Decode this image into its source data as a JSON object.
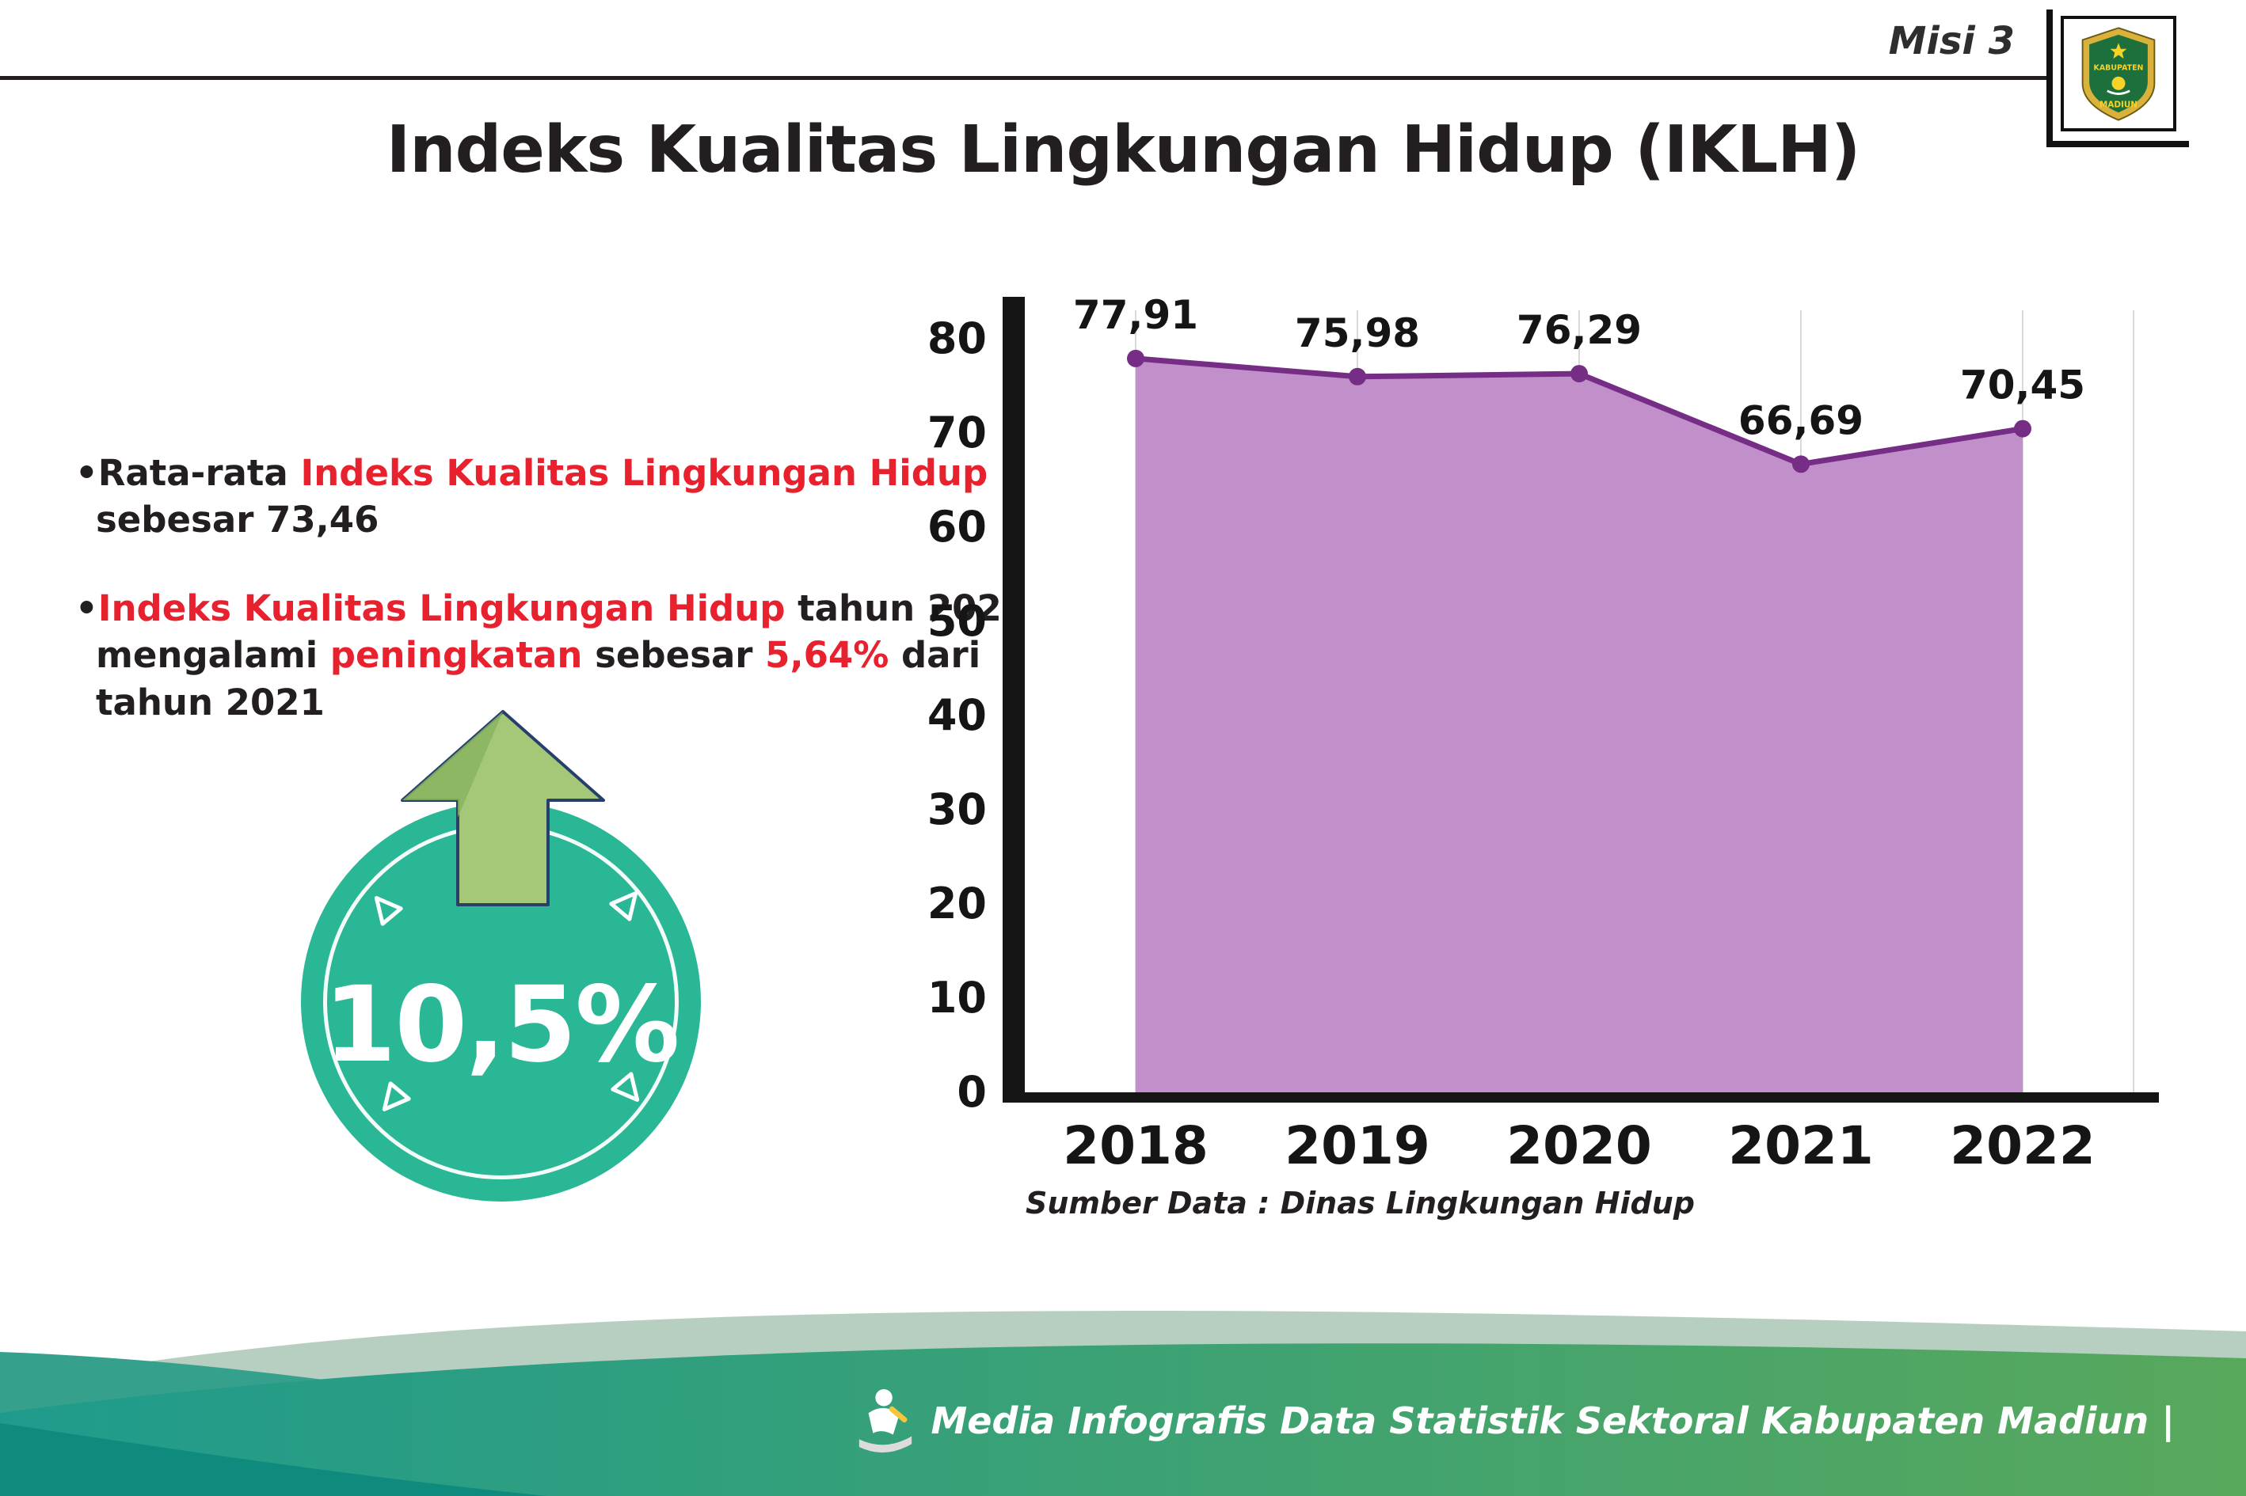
{
  "header": {
    "misi_label": "Misi 3",
    "title": "Indeks Kualitas Lingkungan Hidup (IKLH)",
    "logo": {
      "top_text": "KABUPATEN",
      "bottom_text": "MADIUN"
    }
  },
  "bullets": {
    "marker": "•",
    "b1": [
      [
        {
          "t": "Rata-rata ",
          "c": "k"
        },
        {
          "t": "Indeks Kualitas Lingkungan Hidup",
          "c": "r"
        }
      ],
      [
        {
          "t": "sebesar 73,46",
          "c": "k"
        }
      ]
    ],
    "b2": [
      [
        {
          "t": "Indeks Kualitas Lingkungan Hidup",
          "c": "r"
        },
        {
          "t": " tahun 2022",
          "c": "k"
        }
      ],
      [
        {
          "t": "mengalami ",
          "c": "k"
        },
        {
          "t": "peningkatan",
          "c": "r"
        },
        {
          "t": " sebesar ",
          "c": "k"
        },
        {
          "t": "5,64%",
          "c": "r"
        },
        {
          "t": " dari",
          "c": "k"
        }
      ],
      [
        {
          "t": "tahun 2021",
          "c": "k"
        }
      ]
    ]
  },
  "badge": {
    "value": "10,5%"
  },
  "chart_data": {
    "type": "area",
    "categories": [
      "2018",
      "2019",
      "2020",
      "2021",
      "2022"
    ],
    "values": [
      77.91,
      75.98,
      76.29,
      66.69,
      70.45
    ],
    "value_labels": [
      "77,91",
      "75,98",
      "76,29",
      "66,69",
      "70,45"
    ],
    "ylim": [
      0,
      80
    ],
    "ytick_step": 10,
    "grid": "vertical",
    "legend": "none",
    "colors": {
      "area": "#c18fc9",
      "line": "#762d86",
      "point": "#762d86",
      "axis": "#151515",
      "grid": "#d9d9d9",
      "label": "#151515"
    },
    "source_note": "Sumber Data : Dinas Lingkungan Hidup"
  },
  "footer": {
    "credit": "Media Infografis Data Statistik Sektoral Kabupaten Madiun |"
  },
  "theme": {
    "accent_red": "#e8212e",
    "badge_teal": "#29b795",
    "arrow_green": "#a4c878",
    "footer_teal": "#1f9b8d",
    "footer_green": "#58a85c",
    "text_dark": "#231f20"
  }
}
